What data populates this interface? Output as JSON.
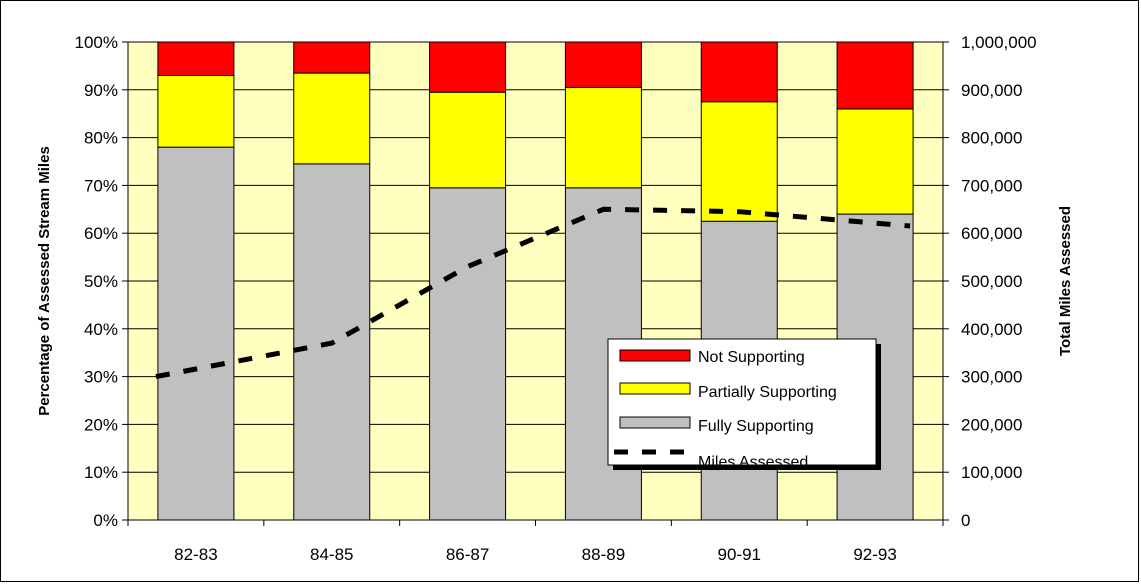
{
  "chart_data": {
    "type": "bar",
    "stacked": true,
    "categories": [
      "82-83",
      "84-85",
      "86-87",
      "88-89",
      "90-91",
      "92-93"
    ],
    "series": [
      {
        "name": "Fully Supporting",
        "color": "#c0c0c0",
        "values": [
          78,
          74.5,
          69.5,
          69.5,
          62.5,
          64
        ]
      },
      {
        "name": "Partially Supporting",
        "color": "#ffff00",
        "values": [
          15,
          19,
          20,
          21,
          25,
          22
        ]
      },
      {
        "name": "Not Supporting",
        "color": "#ff0000",
        "values": [
          7,
          6.5,
          10.5,
          9.5,
          12.5,
          14
        ]
      }
    ],
    "line": {
      "name": "Miles Assessed",
      "style": "dashed",
      "color": "#000000",
      "x": [
        0,
        1,
        2,
        3,
        4,
        5
      ],
      "values": [
        300000,
        370000,
        530000,
        650000,
        645000,
        615000
      ]
    },
    "ylabel": "Percentage of Assessed Stream Miles",
    "y2label": "Total Miles Assessed",
    "ylim": [
      0,
      100
    ],
    "y2lim": [
      0,
      1000000
    ],
    "yticks": [
      "0%",
      "10%",
      "20%",
      "30%",
      "40%",
      "50%",
      "60%",
      "70%",
      "80%",
      "90%",
      "100%"
    ],
    "y2ticks": [
      "0",
      "100,000",
      "200,000",
      "300,000",
      "400,000",
      "500,000",
      "600,000",
      "700,000",
      "800,000",
      "900,000",
      "1,000,000"
    ],
    "grid": true,
    "plot_background": "#ffffc0",
    "legend": {
      "placement": "lower-right",
      "entries": [
        "Not Supporting",
        "Partially Supporting",
        "Fully Supporting",
        "Miles Assessed"
      ]
    }
  }
}
